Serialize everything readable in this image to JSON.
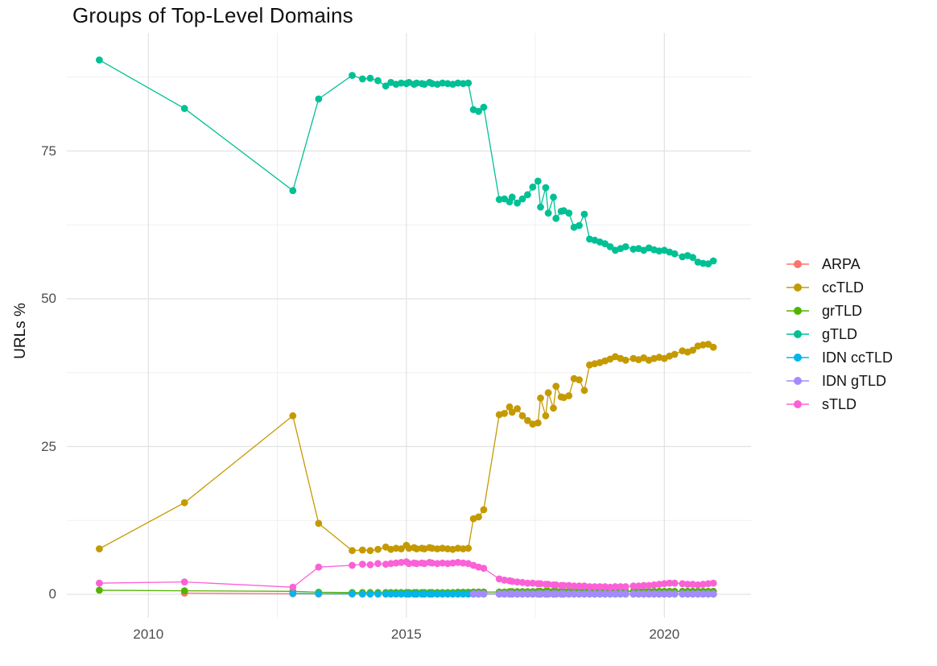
{
  "figure": {
    "title": "Groups of Top-Level Domains"
  },
  "chart_data": {
    "type": "line",
    "title": "Groups of Top-Level Domains",
    "xlabel": "",
    "ylabel": "URLs %",
    "grid": true,
    "legend_position": "right",
    "x_domain": [
      2008.42,
      2021.68
    ],
    "y_domain": [
      -3.95,
      94.96
    ],
    "x_ticks": [
      {
        "value": 2010,
        "label": "2010"
      },
      {
        "value": 2015,
        "label": "2015"
      },
      {
        "value": 2020,
        "label": "2020"
      }
    ],
    "x_minor": [
      2012.5,
      2017.5
    ],
    "y_ticks": [
      {
        "value": 0,
        "label": "0"
      },
      {
        "value": 25,
        "label": "25"
      },
      {
        "value": 50,
        "label": "50"
      },
      {
        "value": 75,
        "label": "75"
      }
    ],
    "y_minor": [
      12.5,
      37.5,
      62.5,
      87.5
    ],
    "x": [
      2009.05,
      2010.7,
      2012.8,
      2013.3,
      2013.95,
      2014.15,
      2014.3,
      2014.45,
      2014.6,
      2014.7,
      2014.8,
      2014.9,
      2015.0,
      2015.05,
      2015.15,
      2015.2,
      2015.3,
      2015.35,
      2015.45,
      2015.5,
      2015.6,
      2015.7,
      2015.8,
      2015.9,
      2016.0,
      2016.1,
      2016.2,
      2016.3,
      2016.4,
      2016.5,
      2016.8,
      2016.9,
      2017.0,
      2017.05,
      2017.15,
      2017.25,
      2017.35,
      2017.45,
      2017.55,
      2017.6,
      2017.7,
      2017.75,
      2017.85,
      2017.9,
      2018.0,
      2018.05,
      2018.15,
      2018.25,
      2018.35,
      2018.45,
      2018.55,
      2018.65,
      2018.75,
      2018.85,
      2018.95,
      2019.05,
      2019.15,
      2019.25,
      2019.4,
      2019.5,
      2019.6,
      2019.7,
      2019.8,
      2019.9,
      2020.0,
      2020.1,
      2020.2,
      2020.35,
      2020.45,
      2020.55,
      2020.65,
      2020.75,
      2020.85,
      2020.95
    ],
    "series": [
      {
        "name": "ARPA",
        "color": "#F8766D",
        "values": [
          null,
          0.2,
          0.1,
          0.05,
          0.05,
          0.05,
          0.05,
          0.05,
          0.05,
          0.05,
          0.05,
          0.05,
          0.05,
          0.05,
          0.05,
          0.05,
          0.05,
          0.05,
          0.05,
          0.05,
          0.05,
          0.05,
          0.05,
          0.05,
          0.05,
          0.05,
          0.05,
          0.05,
          0.05,
          0.05,
          0.05,
          0.05,
          0.05,
          0.05,
          0.05,
          0.05,
          0.05,
          0.05,
          0.05,
          0.05,
          0.05,
          0.05,
          0.05,
          0.05,
          0.05,
          0.05,
          0.05,
          0.05,
          0.05,
          0.05,
          0.05,
          0.05,
          0.05,
          0.05,
          0.05,
          0.05,
          0.05,
          0.05,
          0.05,
          0.05,
          0.05,
          0.05,
          0.05,
          0.05,
          0.05,
          0.05,
          0.05,
          0.05,
          0.05,
          0.05,
          0.05,
          0.05,
          0.05,
          0.05
        ]
      },
      {
        "name": "ccTLD",
        "color": "#C49A00",
        "values": [
          7.7,
          15.5,
          30.2,
          12.0,
          7.4,
          7.5,
          7.4,
          7.6,
          8.0,
          7.6,
          7.8,
          7.7,
          8.3,
          7.8,
          7.9,
          7.7,
          7.8,
          7.7,
          7.9,
          7.8,
          7.7,
          7.8,
          7.7,
          7.6,
          7.8,
          7.7,
          7.8,
          12.8,
          13.1,
          14.3,
          30.4,
          30.6,
          31.7,
          30.8,
          31.4,
          30.2,
          29.4,
          28.8,
          29.0,
          33.2,
          30.2,
          34.1,
          31.5,
          35.2,
          33.4,
          33.3,
          33.6,
          36.5,
          36.3,
          34.5,
          38.8,
          39.0,
          39.2,
          39.5,
          39.8,
          40.2,
          39.9,
          39.6,
          39.9,
          39.7,
          40.0,
          39.6,
          39.9,
          40.1,
          39.9,
          40.3,
          40.6,
          41.2,
          41.0,
          41.3,
          42.0,
          42.2,
          42.3,
          41.8
        ]
      },
      {
        "name": "grTLD",
        "color": "#53B400",
        "values": [
          0.7,
          0.6,
          0.5,
          0.35,
          0.3,
          0.3,
          0.3,
          0.3,
          0.3,
          0.3,
          0.3,
          0.3,
          0.3,
          0.3,
          0.3,
          0.3,
          0.3,
          0.3,
          0.3,
          0.3,
          0.3,
          0.3,
          0.3,
          0.3,
          0.35,
          0.35,
          0.35,
          0.4,
          0.4,
          0.4,
          0.4,
          0.4,
          0.45,
          0.45,
          0.45,
          0.45,
          0.45,
          0.45,
          0.5,
          0.5,
          0.5,
          0.5,
          0.5,
          0.5,
          0.5,
          0.5,
          0.5,
          0.5,
          0.5,
          0.5,
          0.5,
          0.5,
          0.5,
          0.5,
          0.5,
          0.5,
          0.5,
          0.5,
          0.5,
          0.5,
          0.5,
          0.5,
          0.5,
          0.5,
          0.5,
          0.5,
          0.5,
          0.5,
          0.5,
          0.5,
          0.5,
          0.5,
          0.5,
          0.5
        ]
      },
      {
        "name": "gTLD",
        "color": "#00C094",
        "values": [
          90.4,
          82.2,
          68.3,
          83.8,
          87.8,
          87.2,
          87.3,
          86.9,
          86.0,
          86.6,
          86.3,
          86.5,
          86.4,
          86.6,
          86.3,
          86.5,
          86.4,
          86.3,
          86.6,
          86.4,
          86.3,
          86.5,
          86.4,
          86.3,
          86.5,
          86.4,
          86.5,
          82.0,
          81.7,
          82.4,
          66.8,
          66.9,
          66.4,
          67.2,
          66.2,
          66.9,
          67.6,
          68.9,
          69.9,
          65.5,
          68.8,
          64.5,
          67.2,
          63.6,
          64.8,
          64.9,
          64.5,
          62.1,
          62.4,
          64.3,
          60.1,
          59.9,
          59.6,
          59.3,
          58.8,
          58.2,
          58.5,
          58.8,
          58.4,
          58.5,
          58.2,
          58.6,
          58.3,
          58.1,
          58.2,
          57.9,
          57.6,
          57.1,
          57.3,
          57.0,
          56.2,
          56.0,
          55.9,
          56.4
        ]
      },
      {
        "name": "IDN ccTLD",
        "color": "#00B6EB",
        "values": [
          null,
          null,
          0.15,
          0.12,
          0.1,
          0.07,
          0.07,
          0.07,
          0.07,
          0.07,
          0.07,
          0.07,
          0.07,
          0.07,
          0.07,
          0.07,
          0.07,
          0.07,
          0.07,
          0.07,
          0.07,
          0.07,
          0.07,
          0.07,
          0.07,
          0.07,
          0.07,
          0.07,
          0.07,
          0.07,
          0.07,
          0.07,
          0.07,
          0.07,
          0.07,
          0.07,
          0.07,
          0.07,
          0.07,
          0.07,
          0.07,
          0.07,
          0.07,
          0.07,
          0.07,
          0.07,
          0.07,
          0.07,
          0.07,
          0.07,
          0.07,
          0.07,
          0.07,
          0.07,
          0.07,
          0.07,
          0.07,
          0.07,
          0.07,
          0.07,
          0.07,
          0.07,
          0.07,
          0.07,
          0.07,
          0.07,
          0.07,
          0.07,
          0.07,
          0.07,
          0.07,
          0.07,
          0.07,
          0.07
        ]
      },
      {
        "name": "IDN gTLD",
        "color": "#A58AFF",
        "values": [
          null,
          null,
          null,
          null,
          null,
          null,
          null,
          null,
          null,
          null,
          null,
          null,
          null,
          null,
          null,
          null,
          null,
          null,
          null,
          null,
          null,
          null,
          null,
          null,
          null,
          null,
          null,
          0.1,
          0.1,
          0.1,
          0.1,
          0.1,
          0.1,
          0.1,
          0.1,
          0.1,
          0.1,
          0.1,
          0.1,
          0.1,
          0.1,
          0.1,
          0.1,
          0.1,
          0.1,
          0.1,
          0.1,
          0.1,
          0.1,
          0.1,
          0.1,
          0.1,
          0.1,
          0.1,
          0.1,
          0.1,
          0.1,
          0.1,
          0.1,
          0.1,
          0.1,
          0.1,
          0.1,
          0.1,
          0.1,
          0.1,
          0.1,
          0.1,
          0.1,
          0.1,
          0.1,
          0.1,
          0.1,
          0.1
        ]
      },
      {
        "name": "sTLD",
        "color": "#FB61D7",
        "values": [
          1.9,
          2.1,
          1.2,
          4.6,
          4.9,
          5.1,
          5.0,
          5.2,
          5.1,
          5.2,
          5.3,
          5.4,
          5.5,
          5.2,
          5.3,
          5.2,
          5.3,
          5.2,
          5.4,
          5.3,
          5.2,
          5.3,
          5.2,
          5.3,
          5.4,
          5.3,
          5.2,
          4.9,
          4.6,
          4.4,
          2.6,
          2.4,
          2.3,
          2.2,
          2.1,
          2.0,
          1.9,
          1.9,
          1.8,
          1.8,
          1.7,
          1.7,
          1.6,
          1.6,
          1.5,
          1.5,
          1.5,
          1.4,
          1.4,
          1.4,
          1.3,
          1.3,
          1.3,
          1.3,
          1.2,
          1.3,
          1.3,
          1.3,
          1.4,
          1.4,
          1.5,
          1.5,
          1.6,
          1.7,
          1.8,
          1.9,
          1.9,
          1.8,
          1.7,
          1.7,
          1.6,
          1.7,
          1.8,
          1.9
        ]
      }
    ]
  }
}
